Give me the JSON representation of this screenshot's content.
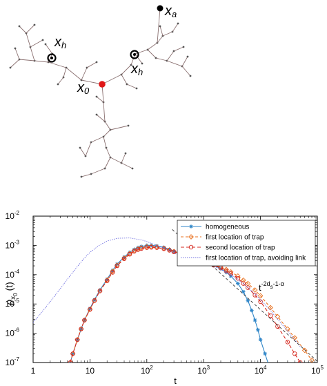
{
  "tree": {
    "label_x0": "x",
    "label_x0_sub": "0",
    "label_xa": "x",
    "label_xa_sub": "a",
    "label_xh_left": "x",
    "label_xh_left_sub": "h",
    "label_xh_right": "x",
    "label_xh_right_sub": "h"
  },
  "chart_data": {
    "type": "line",
    "xscale": "log",
    "yscale": "log",
    "xlim": [
      1,
      100000
    ],
    "ylim": [
      1e-07,
      0.01
    ],
    "xlabel": "t",
    "ylabel_main": "ρ",
    "ylabel_sub": "x",
    "ylabel_subsub": "0",
    "ylabel_tail": "(t)",
    "x_tick_labels": [
      {
        "value": 1,
        "base": "1",
        "exp": ""
      },
      {
        "value": 10,
        "base": "10",
        "exp": ""
      },
      {
        "value": 100,
        "base": "10",
        "exp": "2"
      },
      {
        "value": 1000,
        "base": "10",
        "exp": "3"
      },
      {
        "value": 10000,
        "base": "10",
        "exp": "4"
      },
      {
        "value": 100000,
        "base": "10",
        "exp": "5"
      }
    ],
    "y_tick_labels": [
      {
        "value": 1e-07,
        "base": "10",
        "exp": "-7"
      },
      {
        "value": 1e-06,
        "base": "10",
        "exp": "-6"
      },
      {
        "value": 1e-05,
        "base": "10",
        "exp": "-5"
      },
      {
        "value": 0.0001,
        "base": "10",
        "exp": "-4"
      },
      {
        "value": 0.001,
        "base": "10",
        "exp": "-3"
      },
      {
        "value": 0.01,
        "base": "10",
        "exp": "-2"
      }
    ],
    "legend_position": "top-right",
    "annotation": {
      "base": "t",
      "exp": "-2d",
      "sub": "s",
      "exp_tail": "-1-α",
      "x": 2800,
      "y": 2e-05
    },
    "series": [
      {
        "name": "homogeneous",
        "color": "#2f86c8",
        "marker": "asterisk",
        "dash": "",
        "x": [
          4.5,
          5,
          6,
          7,
          8,
          10,
          12,
          15,
          20,
          25,
          30,
          40,
          50,
          60,
          70,
          80,
          100,
          120,
          150,
          200,
          250,
          300,
          400,
          500,
          600,
          700,
          800,
          1000,
          1200,
          1500,
          2000,
          2500,
          3000,
          4000,
          5000,
          6000,
          7000,
          8000,
          9000,
          10000,
          12000,
          14000
        ],
        "y": [
          1e-07,
          2e-07,
          6e-07,
          1.4e-06,
          2.8e-06,
          7e-06,
          1.4e-05,
          3e-05,
          7e-05,
          0.00014,
          0.00023,
          0.0004,
          0.00058,
          0.00073,
          0.00084,
          0.00092,
          0.001,
          0.001,
          0.00097,
          0.00086,
          0.00073,
          0.00063,
          0.00051,
          0.00044,
          0.00039,
          0.00036,
          0.00033,
          0.00029,
          0.00025,
          0.00021,
          0.00016,
          0.00012,
          9e-05,
          5e-05,
          2.6e-05,
          1.3e-05,
          6e-06,
          2.8e-06,
          1.3e-06,
          6e-07,
          2e-07,
          8e-08
        ]
      },
      {
        "name": "first location of trap",
        "color": "#e8711f",
        "marker": "diamond",
        "dash": "4,3",
        "x": [
          4.5,
          5,
          6,
          7,
          8,
          10,
          12,
          15,
          20,
          25,
          30,
          40,
          50,
          60,
          70,
          80,
          100,
          120,
          150,
          200,
          250,
          300,
          400,
          500,
          600,
          700,
          800,
          1000,
          1200,
          1500,
          2000,
          2500,
          3000,
          4000,
          5000,
          6000,
          8000,
          10000,
          15000,
          20000,
          30000,
          40000,
          60000,
          80000
        ],
        "y": [
          1e-07,
          2e-07,
          6e-07,
          1.4e-06,
          2.8e-06,
          6.5e-06,
          1.3e-05,
          2.8e-05,
          6.5e-05,
          0.00013,
          0.00021,
          0.00037,
          0.00053,
          0.00066,
          0.00076,
          0.00083,
          0.0009,
          0.00091,
          0.00089,
          0.0008,
          0.0007,
          0.00062,
          0.00051,
          0.00044,
          0.00039,
          0.00036,
          0.00033,
          0.00029,
          0.00026,
          0.00022,
          0.00018,
          0.00015,
          0.000125,
          9e-05,
          6.5e-05,
          5e-05,
          3e-05,
          1.9e-05,
          7.5e-06,
          3.7e-06,
          1.4e-06,
          7e-07,
          2.6e-07,
          1.2e-07
        ]
      },
      {
        "name": "second location of trap",
        "color": "#d6281f",
        "marker": "circle",
        "dash": "5,3",
        "x": [
          4.5,
          5,
          6,
          7,
          8,
          10,
          12,
          15,
          20,
          25,
          30,
          40,
          50,
          60,
          70,
          80,
          100,
          120,
          150,
          200,
          250,
          300,
          400,
          500,
          600,
          700,
          800,
          1000,
          1200,
          1500,
          2000,
          2500,
          3000,
          4000,
          5000,
          6000,
          8000,
          10000,
          15000,
          20000,
          30000,
          40000,
          50000
        ],
        "y": [
          1e-07,
          2e-07,
          6e-07,
          1.4e-06,
          2.8e-06,
          6.5e-06,
          1.3e-05,
          2.8e-05,
          6.2e-05,
          0.00012,
          0.0002,
          0.00035,
          0.0005,
          0.00063,
          0.00072,
          0.00078,
          0.00084,
          0.00086,
          0.00084,
          0.00077,
          0.00068,
          0.0006,
          0.0005,
          0.00043,
          0.00038,
          0.00035,
          0.00032,
          0.00028,
          0.00025,
          0.00021,
          0.00017,
          0.000135,
          0.00011,
          7.5e-05,
          5e-05,
          3.6e-05,
          2e-05,
          1.2e-05,
          4e-06,
          1.7e-06,
          5e-07,
          2e-07,
          1e-07
        ]
      },
      {
        "name": "first location of trap, avoiding link",
        "color": "#7070e0",
        "marker": "none",
        "dash": "1.5,1.5",
        "x": [
          1,
          1.5,
          2,
          3,
          4,
          5,
          6,
          8,
          10,
          15,
          20,
          30,
          50,
          80,
          100,
          150,
          200,
          300,
          500,
          800,
          1000,
          1500,
          2000,
          3000,
          5000,
          8000,
          10000,
          15000,
          20000,
          30000,
          50000
        ],
        "y": [
          2.3e-06,
          6e-06,
          1.2e-05,
          3.3e-05,
          7e-05,
          0.00012,
          0.00019,
          0.00037,
          0.00058,
          0.00105,
          0.0014,
          0.00175,
          0.0018,
          0.00155,
          0.00135,
          0.001,
          0.00078,
          0.00055,
          0.00038,
          0.00029,
          0.00025,
          0.00019,
          0.00015,
          0.0001,
          5e-05,
          2.2e-05,
          1.4e-05,
          6e-06,
          3e-06,
          1.2e-06,
          3.5e-07
        ]
      },
      {
        "name": "",
        "color": "#333333",
        "marker": "none",
        "dash": "4,3",
        "x": [
          280,
          100000
        ],
        "y": [
          0.0035,
          1.1e-07
        ]
      }
    ]
  }
}
